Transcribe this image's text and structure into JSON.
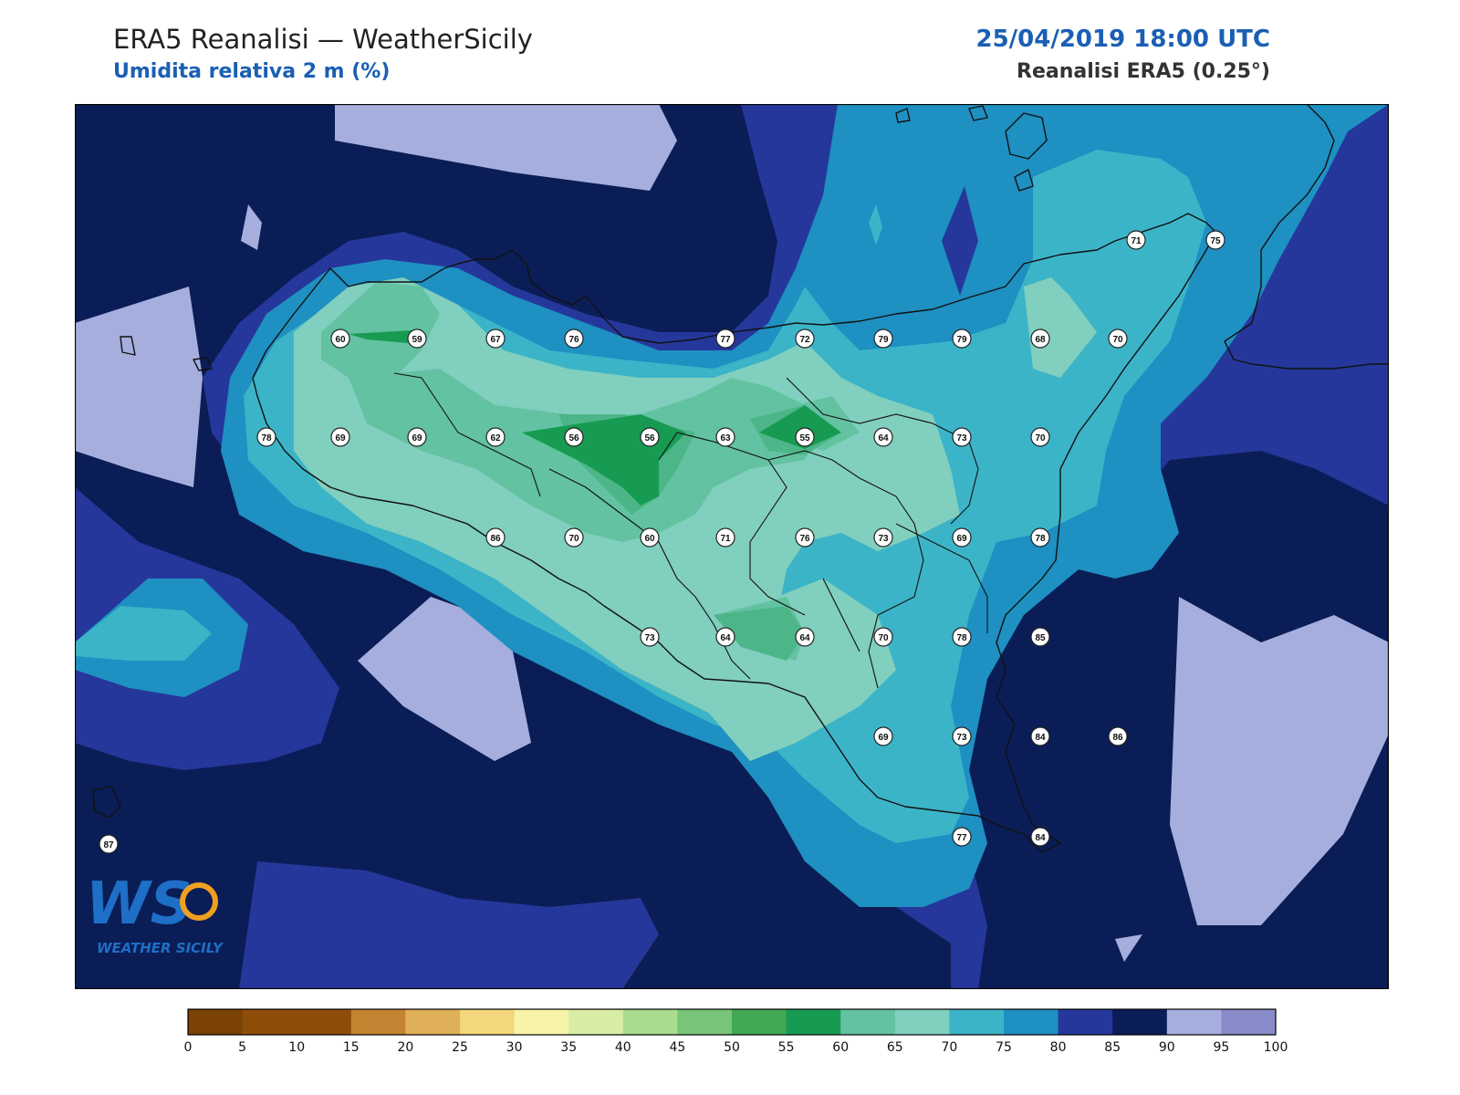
{
  "header": {
    "title": "ERA5 Reanalisi — WeatherSicily",
    "subtitle": "Umidita relativa 2 m (%)",
    "datetime": "25/04/2019 18:00 UTC",
    "source": "Reanalisi ERA5 (0.25°)"
  },
  "logo": {
    "initials": "WS",
    "name": "WEATHER SICILY"
  },
  "colors": {
    "ocean": "#0b1d56",
    "level_85": "#25379a",
    "level_80": "#1e90c2",
    "level_75": "#3cb4c8",
    "level_70": "#81cfbe",
    "level_65": "#63c2a1",
    "level_60": "#4cb688",
    "level_55": "#179b52",
    "level_95": "#a5aedd",
    "coast": "#111111"
  },
  "colorbar": {
    "ticks": [
      "0",
      "5",
      "10",
      "15",
      "20",
      "25",
      "30",
      "35",
      "40",
      "45",
      "50",
      "55",
      "60",
      "65",
      "70",
      "75",
      "80",
      "85",
      "90",
      "95",
      "100"
    ],
    "colors": [
      "#7a4205",
      "#8f4d0a",
      "#8f4d0a",
      "#c48330",
      "#e0b058",
      "#f2d77c",
      "#f7f3a8",
      "#d9eca6",
      "#a9dc8e",
      "#79c578",
      "#41a854",
      "#179b52",
      "#63c2a1",
      "#81cfbe",
      "#3cb4c8",
      "#1e90c2",
      "#25379a",
      "#0b1d56",
      "#a5aedd",
      "#8a8bc9"
    ]
  },
  "station_values": [
    "60",
    "59",
    "67",
    "76",
    "77",
    "72",
    "79",
    "79",
    "68",
    "70",
    "71",
    "75",
    "78",
    "69",
    "69",
    "62",
    "56",
    "56",
    "63",
    "55",
    "64",
    "73",
    "70",
    "86",
    "70",
    "60",
    "71",
    "76",
    "73",
    "69",
    "78",
    "73",
    "64",
    "64",
    "70",
    "78",
    "85",
    "69",
    "73",
    "84",
    "86",
    "77",
    "84",
    "87"
  ]
}
